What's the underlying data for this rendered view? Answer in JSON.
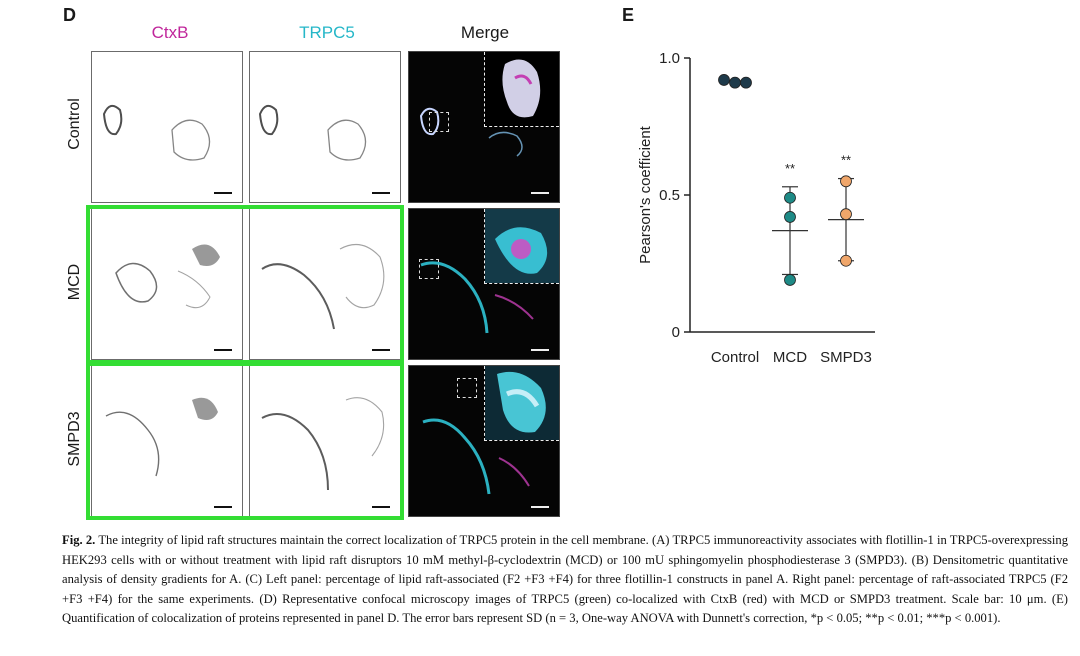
{
  "panel_d": {
    "letter": "D",
    "columns": [
      "CtxB",
      "TRPC5",
      "Merge"
    ],
    "column_colors": [
      "#c0269b",
      "#25b7c8",
      "#1a1a1a"
    ],
    "rows": [
      "Control",
      "MCD",
      "SMPD3"
    ],
    "highlight_color": "#33dd33"
  },
  "panel_e": {
    "letter": "E",
    "chart_data": {
      "type": "scatter",
      "categories": [
        "Control",
        "MCD",
        "SMPD3"
      ],
      "ylabel": "Pearson's coefficient",
      "yticks": [
        "0",
        "0.5",
        "1.0"
      ],
      "ylim": [
        0,
        1.0
      ],
      "series": [
        {
          "category": "Control",
          "points": [
            0.92,
            0.91,
            0.91
          ],
          "mean": 0.91,
          "sd": 0.0,
          "color": "#1e3a4a",
          "significance": ""
        },
        {
          "category": "MCD",
          "points": [
            0.49,
            0.42,
            0.19
          ],
          "mean": 0.37,
          "sd": 0.16,
          "color": "#1e8a86",
          "significance": "**"
        },
        {
          "category": "SMPD3",
          "points": [
            0.55,
            0.43,
            0.26
          ],
          "mean": 0.41,
          "sd": 0.15,
          "color": "#f0a66a",
          "significance": "**"
        }
      ]
    }
  },
  "caption": {
    "label": "Fig. 2.",
    "text": "The integrity of lipid raft structures maintain the correct localization of TRPC5 protein in the cell membrane. (A) TRPC5 immunoreactivity associates with flotillin-1 in TRPC5-overexpressing HEK293 cells with or without treatment with lipid raft disruptors 10 mM methyl-β-cyclodextrin (MCD) or 100 mU sphingomyelin phosphodiesterase 3 (SMPD3). (B) Densitometric quantitative analysis of density gradients for A. (C) Left panel: percentage of lipid raft-associated (F2 +F3 +F4) for three flotillin-1 constructs in panel A. Right panel: percentage of raft-associated TRPC5 (F2 +F3 +F4) for the same experiments. (D) Representative confocal microscopy images of TRPC5 (green) co-localized with CtxB (red) with MCD or SMPD3 treatment. Scale bar: 10 μm. (E) Quantification of colocalization of proteins represented in panel D. The error bars represent SD (n = 3, One-way ANOVA with Dunnett's correction, *p < 0.05; **p < 0.01; ***p < 0.001)."
  }
}
